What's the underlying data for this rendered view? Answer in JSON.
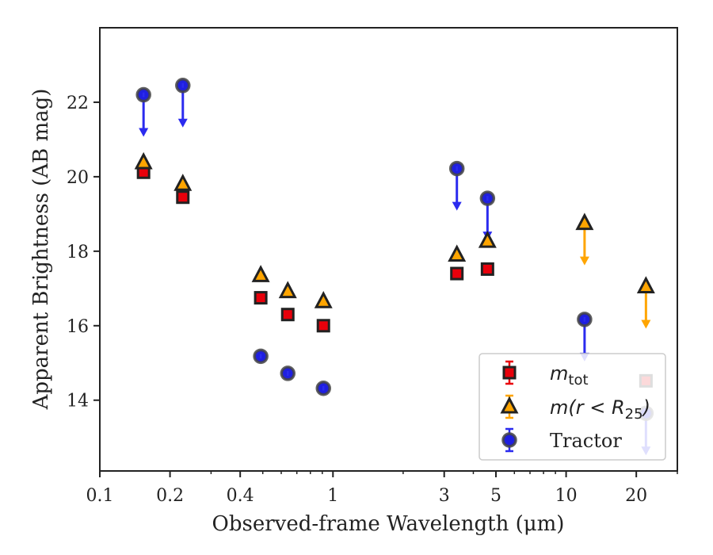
{
  "chart_data": {
    "type": "scatter",
    "xlabel": "Observed-frame Wavelength (μm)",
    "ylabel": "Apparent Brightness (AB mag)",
    "xscale": "log",
    "xlim": [
      0.1,
      30
    ],
    "ylim": [
      24.0,
      12.1
    ],
    "y_inverted": true,
    "x_tick_labels": [
      "0.1",
      "0.2",
      "0.4",
      "1",
      "3",
      "5",
      "10",
      "20"
    ],
    "x_ticks": [
      0.1,
      0.2,
      0.4,
      1,
      3,
      5,
      10,
      20
    ],
    "y_tick_labels": [
      "14",
      "16",
      "18",
      "20",
      "22"
    ],
    "y_ticks": [
      14,
      16,
      18,
      20,
      22
    ],
    "legend_position": "lower right",
    "series": [
      {
        "key": "mtot",
        "label_main": "m",
        "label_sub": "tot",
        "marker": "square",
        "color": "#e8000b",
        "edge": "#222222",
        "points": [
          {
            "x": 0.154,
            "y": 20.12,
            "upper_limit": false
          },
          {
            "x": 0.227,
            "y": 19.45,
            "upper_limit": false
          },
          {
            "x": 0.49,
            "y": 16.75,
            "upper_limit": false
          },
          {
            "x": 0.64,
            "y": 16.3,
            "upper_limit": false
          },
          {
            "x": 0.91,
            "y": 16.0,
            "upper_limit": false
          },
          {
            "x": 3.4,
            "y": 17.4,
            "upper_limit": false
          },
          {
            "x": 4.6,
            "y": 17.52,
            "upper_limit": false
          },
          {
            "x": 22.0,
            "y": 14.52,
            "upper_limit": false
          }
        ]
      },
      {
        "key": "mr25",
        "label_main": "m(r < R",
        "label_sub": "25",
        "label_end": ")",
        "marker": "triangle",
        "color": "#ffa500",
        "edge": "#222222",
        "points": [
          {
            "x": 0.154,
            "y": 20.38,
            "upper_limit": false
          },
          {
            "x": 0.227,
            "y": 19.8,
            "upper_limit": false
          },
          {
            "x": 0.49,
            "y": 17.35,
            "upper_limit": false
          },
          {
            "x": 0.64,
            "y": 16.92,
            "upper_limit": false
          },
          {
            "x": 0.91,
            "y": 16.65,
            "upper_limit": false
          },
          {
            "x": 3.4,
            "y": 17.9,
            "upper_limit": false
          },
          {
            "x": 4.6,
            "y": 18.27,
            "upper_limit": false
          },
          {
            "x": 12.0,
            "y": 18.75,
            "upper_limit": true
          },
          {
            "x": 22.0,
            "y": 17.05,
            "upper_limit": true
          }
        ]
      },
      {
        "key": "tractor",
        "label_main": "Tractor",
        "marker": "circle",
        "color": "#1f1fe0",
        "arrow_color": "#2b2bef",
        "edge": "#444444",
        "points": [
          {
            "x": 0.154,
            "y": 22.2,
            "upper_limit": true
          },
          {
            "x": 0.227,
            "y": 22.45,
            "upper_limit": true
          },
          {
            "x": 0.49,
            "y": 15.18,
            "upper_limit": false
          },
          {
            "x": 0.64,
            "y": 14.72,
            "upper_limit": false
          },
          {
            "x": 0.91,
            "y": 14.32,
            "upper_limit": false
          },
          {
            "x": 3.4,
            "y": 20.22,
            "upper_limit": true
          },
          {
            "x": 4.6,
            "y": 19.42,
            "upper_limit": true
          },
          {
            "x": 12.0,
            "y": 16.17,
            "upper_limit": true
          },
          {
            "x": 22.0,
            "y": 13.65,
            "upper_limit": true
          }
        ]
      }
    ]
  }
}
